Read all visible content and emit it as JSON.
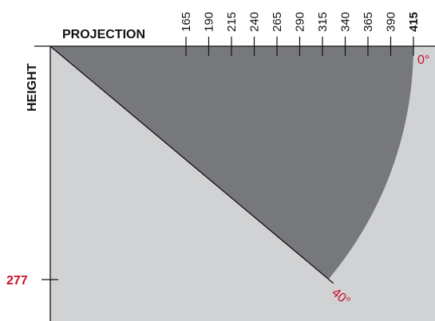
{
  "colors": {
    "background": "#ffffff",
    "plot_area": "#d1d2d4",
    "sector": "#77787b",
    "axis": "#111111",
    "highlight": "#c8102e"
  },
  "chart_data": {
    "type": "diagram",
    "x_axis": {
      "title": "PROJECTION",
      "ticks": [
        165,
        190,
        215,
        240,
        265,
        290,
        315,
        340,
        365,
        390,
        415
      ],
      "highlight_tick": 415
    },
    "y_axis": {
      "title": "HEIGHT",
      "marked_value": 277
    },
    "sector": {
      "radius": 415,
      "angle_start_label": "0°",
      "angle_end_label": "40°",
      "angle_start_deg": 0,
      "angle_end_deg": 40
    }
  }
}
